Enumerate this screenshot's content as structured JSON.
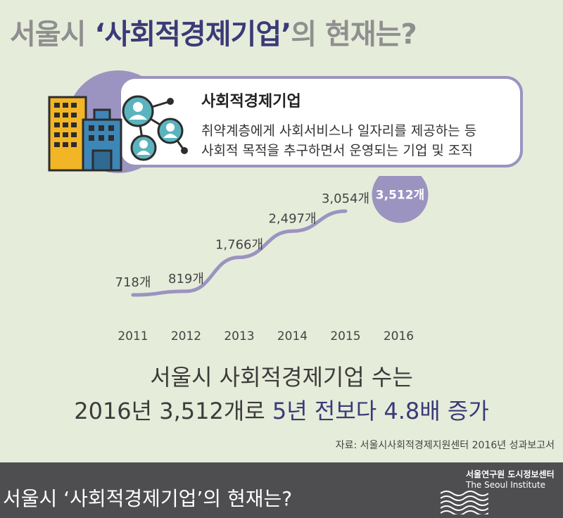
{
  "header": {
    "title_pre": "서울시 ",
    "title_highlight": "‘사회적경제기업’",
    "title_post": "의 현재는?"
  },
  "definition": {
    "title": "사회적경제기업",
    "line1": "취약계층에게 사회서비스나 일자리를 제공하는 등",
    "line2": "사회적 목적을 추구하면서 운영되는 기업 및 조직"
  },
  "chart_data": {
    "type": "line",
    "categories": [
      "2011",
      "2012",
      "2013",
      "2014",
      "2015",
      "2016"
    ],
    "values": [
      718,
      819,
      1766,
      2497,
      3054,
      3512
    ],
    "data_labels": [
      "718개",
      "819개",
      "1,766개",
      "2,497개",
      "3,054개",
      "3,512개"
    ],
    "line_color": "#9b93c0",
    "highlight_color": "#9b93c0"
  },
  "summary": {
    "line1": "서울시 사회적경제기업 수는",
    "line2_pre": "2016년 3,512개로 ",
    "line2_highlight": "5년 전보다 4.8배 증가"
  },
  "source": "자료: 서울시사회적경제지원센터 2016년 성과보고서",
  "footer": {
    "title": "서울시 ‘사회적경제기업’의 현재는?",
    "org_kr": "서울연구원 도시정보센터",
    "org_en": "The Seoul Institute"
  },
  "colors": {
    "background": "#e6ecda",
    "accent": "#3a3a78",
    "purple": "#9b93c0",
    "footer": "#4e4e50"
  }
}
